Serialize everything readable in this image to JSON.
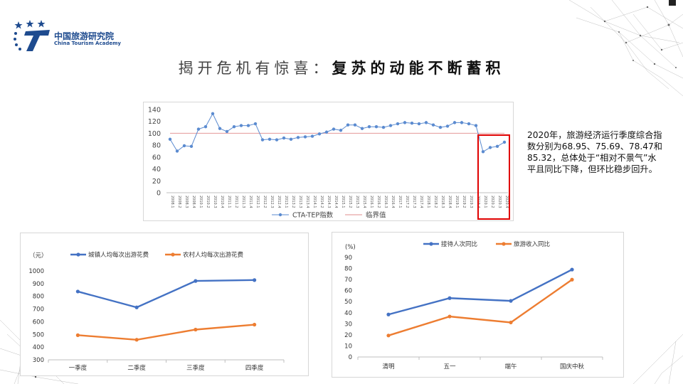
{
  "logo": {
    "name_zh": "中国旅游研究院",
    "name_en": "China Tourism Academy",
    "mark": "T"
  },
  "title": {
    "part1": "揭开危机有惊喜：",
    "part2": "复苏的动能不断蓄积"
  },
  "note": "2020年，旅游经济运行季度综合指数分别为68.95、75.69、78.47和85.32，总体处于“相对不景气”水平且同比下降，但环比稳步回升。",
  "colors": {
    "blue": "#4472c4",
    "orange": "#ed7d31",
    "threshold": "#e8a3a3",
    "highlight": "#e00000",
    "brand": "#1e4b8f"
  },
  "chart_data": [
    {
      "type": "line",
      "x": [
        "2008.1",
        "2008.2",
        "2008.3",
        "2008.4",
        "2010.1",
        "2010.2",
        "2010.3",
        "2010.4",
        "2011.1",
        "2011.2",
        "2011.3",
        "2011.4",
        "2012.1",
        "2012.2",
        "2012.3",
        "2012.4",
        "2013.1",
        "2013.2",
        "2013.3",
        "2013.4",
        "2014.1",
        "2014.2",
        "2014.3",
        "2014.4",
        "2015.1",
        "2015.2",
        "2015.3",
        "2015.4",
        "2016.1",
        "2016.2",
        "2016.3",
        "2016.4",
        "2017.1",
        "2017.2",
        "2017.3",
        "2017.4",
        "2018.1",
        "2018.2",
        "2018.3",
        "2018.4",
        "2019.1",
        "2019.2",
        "2019.3",
        "2019.4",
        "2020.1",
        "2020.2",
        "2020.3",
        "2020.4"
      ],
      "series": [
        {
          "name": "CTA-TEP指数",
          "values": [
            90,
            70,
            79,
            78,
            107,
            111,
            133,
            108,
            103,
            111,
            113,
            113,
            116,
            89,
            90,
            89,
            92,
            90,
            93,
            94,
            95,
            99,
            102,
            107,
            105,
            114,
            114,
            108,
            111,
            111,
            110,
            113,
            116,
            118,
            117,
            116,
            118,
            114,
            110,
            112,
            118,
            118,
            116,
            113,
            69,
            76,
            78,
            85
          ]
        },
        {
          "name": "临界值",
          "values": [
            100,
            100,
            100,
            100,
            100,
            100,
            100,
            100,
            100,
            100,
            100,
            100,
            100,
            100,
            100,
            100,
            100,
            100,
            100,
            100,
            100,
            100,
            100,
            100,
            100,
            100,
            100,
            100,
            100,
            100,
            100,
            100,
            100,
            100,
            100,
            100,
            100,
            100,
            100,
            100,
            100,
            100,
            100,
            100,
            100,
            100,
            100,
            100
          ]
        }
      ],
      "ylim": [
        0,
        140
      ],
      "yticks": [
        "0",
        "20",
        "40",
        "60",
        "80",
        "100",
        "120",
        "140"
      ],
      "legend": "bottom",
      "grid": false
    },
    {
      "type": "line",
      "categories": [
        "一季度",
        "二季度",
        "三季度",
        "四季度"
      ],
      "series": [
        {
          "name": "城镇人均每次出游花费",
          "values": [
            838,
            713,
            921,
            928
          ]
        },
        {
          "name": "农村人均每次出游花费",
          "values": [
            494,
            458,
            538,
            577
          ]
        }
      ],
      "ylabel": "（元）",
      "ylim": [
        300,
        1000
      ],
      "yticks": [
        "300",
        "400",
        "500",
        "600",
        "700",
        "800",
        "900",
        "1000"
      ],
      "legend": "top",
      "grid": false
    },
    {
      "type": "line",
      "categories": [
        "清明",
        "五一",
        "端午",
        "国庆中秋"
      ],
      "series": [
        {
          "name": "接待人次同比",
          "values": [
            38.4,
            53.2,
            50.7,
            79.0
          ]
        },
        {
          "name": "旅游收入同比",
          "values": [
            19.4,
            36.6,
            31.2,
            69.9
          ]
        }
      ],
      "ylabel": "(%)",
      "ylim": [
        0,
        90
      ],
      "yticks": [
        "0",
        "10",
        "20",
        "30",
        "40",
        "50",
        "60",
        "70",
        "80",
        "90"
      ],
      "legend": "top",
      "grid": false
    }
  ]
}
